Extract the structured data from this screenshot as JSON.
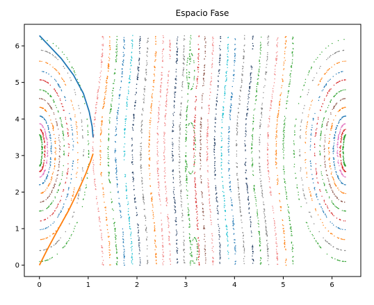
{
  "chart_data": {
    "type": "scatter",
    "title": "Espacio Fase",
    "xlabel": "",
    "ylabel": "",
    "xlim": [
      -0.31,
      6.59
    ],
    "ylim": [
      -0.31,
      6.59
    ],
    "x_ticks": [
      "0",
      "1",
      "2",
      "3",
      "4",
      "5",
      "6"
    ],
    "y_ticks": [
      "0",
      "1",
      "2",
      "3",
      "4",
      "5",
      "6"
    ],
    "grid": false,
    "legend": "none",
    "colors": [
      "#1f77b4",
      "#ff7f0e",
      "#2ca02c",
      "#d62728",
      "#9467bd",
      "#8c564b",
      "#e377c2",
      "#7f7f7f",
      "#bcbd22",
      "#17becf",
      "#1f3a5f",
      "#f08080"
    ],
    "resonance_centers": [
      {
        "x": 0,
        "y": 3.14
      },
      {
        "x": 6.28,
        "y": 3.14
      }
    ],
    "library_orbits": [
      {
        "x0": 0.05,
        "a": 0.02,
        "color": "#2ca02c"
      },
      {
        "x0": 0.1,
        "a": 0.03,
        "color": "#d62728"
      },
      {
        "x0": 0.15,
        "a": 0.04,
        "color": "#e377c2"
      },
      {
        "x0": 0.22,
        "a": 0.05,
        "color": "#1f77b4"
      },
      {
        "x0": 0.3,
        "a": 0.06,
        "color": "#ff7f0e"
      },
      {
        "x0": 0.38,
        "a": 0.07,
        "color": "#8c564b"
      },
      {
        "x0": 0.46,
        "a": 0.07,
        "color": "#2ca02c"
      },
      {
        "x0": 0.55,
        "a": 0.08,
        "color": "#d62728"
      },
      {
        "x0": 0.63,
        "a": 0.08,
        "color": "#1f77b4"
      },
      {
        "x0": 0.72,
        "a": 0.09,
        "color": "#ff7f0e"
      },
      {
        "x0": 0.82,
        "a": 0.1,
        "color": "#7f7f7f"
      },
      {
        "x0": 0.92,
        "a": 0.1,
        "color": "#2ca02c"
      }
    ],
    "rotational_orbits": [
      {
        "x0": 1.2,
        "a": 0.1,
        "color": "#f08080"
      },
      {
        "x0": 1.35,
        "a": 0.1,
        "color": "#ff7f0e"
      },
      {
        "x0": 1.5,
        "a": 0.09,
        "color": "#2ca02c"
      },
      {
        "x0": 1.65,
        "a": 0.09,
        "color": "#1f77b4"
      },
      {
        "x0": 1.82,
        "a": 0.08,
        "color": "#17becf"
      },
      {
        "x0": 1.98,
        "a": 0.08,
        "color": "#1f3a5f"
      },
      {
        "x0": 2.15,
        "a": 0.07,
        "color": "#7f7f7f"
      },
      {
        "x0": 2.32,
        "a": 0.07,
        "color": "#ff7f0e"
      },
      {
        "x0": 2.48,
        "a": 0.06,
        "color": "#f08080"
      },
      {
        "x0": 2.62,
        "a": 0.06,
        "color": "#f08080"
      },
      {
        "x0": 2.78,
        "a": 0.05,
        "color": "#1f3a5f"
      },
      {
        "x0": 2.92,
        "a": 0.05,
        "color": "#7f7f7f"
      },
      {
        "x0": 3.05,
        "a": 0.05,
        "color": "#2ca02c"
      },
      {
        "x0": 3.22,
        "a": 0.05,
        "color": "#d62728"
      },
      {
        "x0": 3.35,
        "a": 0.05,
        "color": "#8c564b"
      },
      {
        "x0": 3.5,
        "a": 0.06,
        "color": "#f08080"
      },
      {
        "x0": 3.65,
        "a": 0.06,
        "color": "#1f3a5f"
      },
      {
        "x0": 3.8,
        "a": 0.07,
        "color": "#17becf"
      },
      {
        "x0": 3.95,
        "a": 0.07,
        "color": "#1f77b4"
      },
      {
        "x0": 4.12,
        "a": 0.08,
        "color": "#7f7f7f"
      },
      {
        "x0": 4.3,
        "a": 0.08,
        "color": "#1f3a5f"
      },
      {
        "x0": 4.45,
        "a": 0.09,
        "color": "#2ca02c"
      },
      {
        "x0": 4.6,
        "a": 0.09,
        "color": "#7f7f7f"
      },
      {
        "x0": 4.78,
        "a": 0.1,
        "color": "#f08080"
      },
      {
        "x0": 4.95,
        "a": 0.1,
        "color": "#ff7f0e"
      },
      {
        "x0": 5.1,
        "a": 0.1,
        "color": "#2ca02c"
      }
    ],
    "islands": [
      {
        "x": 3.1,
        "y": 5.3,
        "w": 0.08,
        "h": 0.5,
        "color": "#2ca02c"
      },
      {
        "x": 3.1,
        "y": 3.2,
        "w": 0.1,
        "h": 0.7,
        "color": "#2ca02c"
      },
      {
        "x": 3.18,
        "y": 0.4,
        "w": 0.06,
        "h": 0.35,
        "color": "#2ca02c"
      }
    ],
    "highlight_lines": [
      {
        "color": "#1f77b4",
        "x": [
          0.0,
          0.2,
          0.45,
          0.7,
          0.9,
          1.02,
          1.08,
          1.1
        ],
        "y": [
          6.28,
          6.0,
          5.65,
          5.2,
          4.7,
          4.2,
          3.8,
          3.5
        ]
      },
      {
        "color": "#ff7f0e",
        "x": [
          0.0,
          0.15,
          0.35,
          0.6,
          0.8,
          0.95,
          1.05,
          1.1
        ],
        "y": [
          0.0,
          0.4,
          0.9,
          1.5,
          2.05,
          2.5,
          2.85,
          3.05
        ]
      }
    ]
  }
}
